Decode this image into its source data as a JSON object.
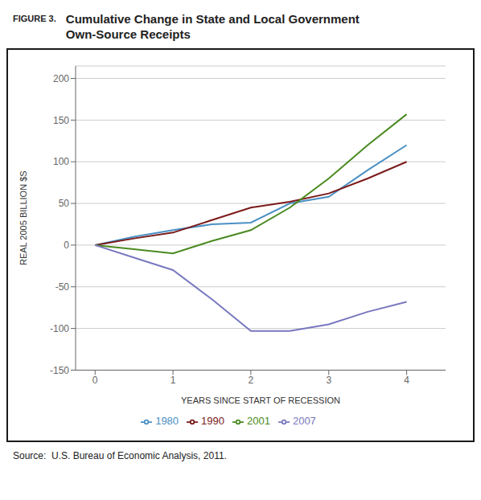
{
  "chart_data": {
    "type": "line",
    "title": "Cumulative Change in State and Local Government\nOwn-Source Receipts",
    "annotations": [
      "FIGURE 3.",
      "Source:  U.S. Bureau of Economic Analysis, 2011."
    ],
    "x_label": "YEARS SINCE START OF RECESSION",
    "y_label": "REAL 2005 BILLION $S",
    "x": [
      0,
      0.5,
      1.0,
      1.5,
      2.0,
      2.5,
      3.0,
      3.5,
      4.0
    ],
    "series": [
      {
        "name": "1980",
        "color": "#4a90c4",
        "values": [
          0,
          10,
          18,
          25,
          27,
          50,
          58,
          90,
          120
        ]
      },
      {
        "name": "1990",
        "color": "#7b1a1a",
        "values": [
          0,
          8,
          15,
          30,
          45,
          52,
          62,
          80,
          100
        ]
      },
      {
        "name": "2001",
        "color": "#4a8a20",
        "values": [
          0,
          -5,
          -10,
          5,
          18,
          45,
          80,
          120,
          157
        ]
      },
      {
        "name": "2007",
        "color": "#7878c0",
        "values": [
          0,
          -15,
          -30,
          -65,
          -103,
          -103,
          -95,
          -80,
          -68
        ]
      }
    ],
    "xlim": [
      -0.25,
      4.5
    ],
    "ylim": [
      -150,
      215
    ],
    "xticks": [
      0,
      1,
      2,
      3,
      4
    ],
    "yticks": [
      -150,
      -100,
      -50,
      0,
      50,
      100,
      150,
      200
    ],
    "grid": "y",
    "legend": "bottom"
  }
}
